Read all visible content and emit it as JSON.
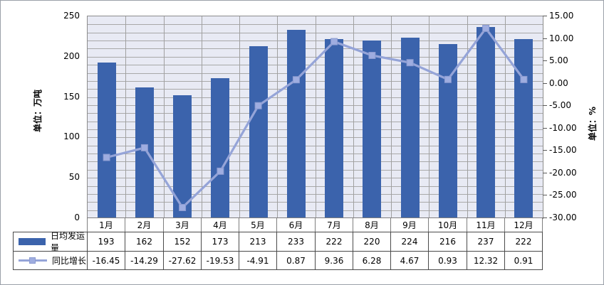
{
  "chart_data": {
    "type": "bar+line",
    "categories": [
      "1月",
      "2月",
      "3月",
      "4月",
      "5月",
      "6月",
      "7月",
      "8月",
      "9月",
      "10月",
      "11月",
      "12月"
    ],
    "series": [
      {
        "name": "日均发运量",
        "type": "bar",
        "axis": "left",
        "values": [
          193,
          162,
          152,
          173,
          213,
          233,
          222,
          220,
          224,
          216,
          237,
          222
        ]
      },
      {
        "name": "同比增长",
        "type": "line",
        "axis": "right",
        "values": [
          -16.45,
          -14.29,
          -27.62,
          -19.53,
          -4.91,
          0.87,
          9.36,
          6.28,
          4.67,
          0.93,
          12.32,
          0.91
        ],
        "display": [
          "-16.45",
          "-14.29",
          "-27.62",
          "-19.53",
          "-4.91",
          "0.87",
          "9.36",
          "6.28",
          "4.67",
          "0.93",
          "12.32",
          "0.91"
        ]
      }
    ],
    "ylabel_left": "单位：万吨",
    "ylabel_right": "单位：%",
    "ylim_left": [
      0,
      250
    ],
    "yticks_left": [
      "250",
      "200",
      "150",
      "100",
      "50",
      "0"
    ],
    "ylim_right": [
      -30,
      15
    ],
    "yticks_right": [
      "15.00",
      "10.00",
      "5.00",
      "0.00",
      "-5.00",
      "-10.00",
      "-15.00",
      "-20.00",
      "-25.00",
      "-30.00"
    ],
    "grid": "minor horizontal every 10 (left axis units), vertical at category boundaries",
    "legend_position": "table-left",
    "colors": {
      "bar": "#3B63AC",
      "line": "#95A4D8",
      "marker_fill": "#9FADE0",
      "marker_stroke": "#8A9AD0",
      "plot_bg": "#E8EAF4",
      "gridline": "#A8A8A8",
      "plot_border": "#8C8C8C",
      "table_border": "#4A4A4A",
      "month_border": "#7F7F7F",
      "text": "#000000"
    }
  }
}
